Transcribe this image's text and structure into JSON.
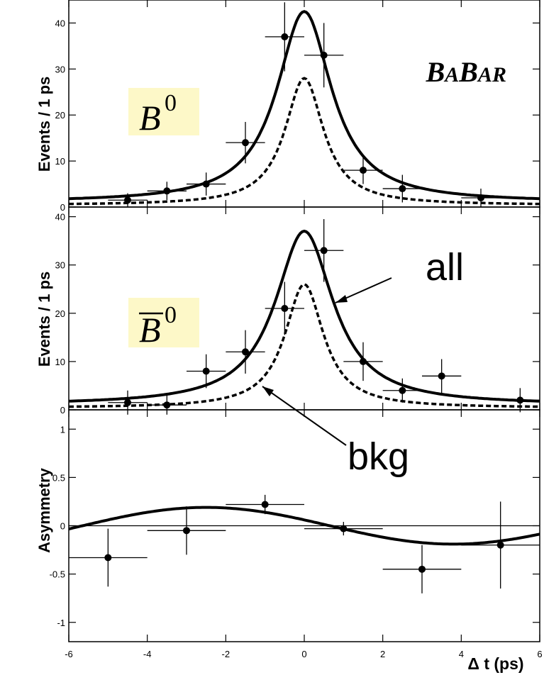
{
  "chart_data": [
    {
      "type": "line",
      "panel": "top",
      "inset_label": "B",
      "inset_superscript": "0",
      "brand": "BABAR",
      "ylabel": "Events / 1 ps",
      "xlim": [
        -6,
        6
      ],
      "ylim": [
        0,
        45
      ],
      "yticks": [
        "0",
        "10",
        "20",
        "30",
        "40"
      ],
      "points": [
        {
          "x": -4.5,
          "y": 1.5,
          "xerr": 0.5,
          "yerr": 1.5
        },
        {
          "x": -3.5,
          "y": 3.5,
          "xerr": 0.5,
          "yerr": 2.0
        },
        {
          "x": -2.5,
          "y": 5,
          "xerr": 0.5,
          "yerr": 2.5
        },
        {
          "x": -1.5,
          "y": 14,
          "xerr": 0.5,
          "yerr": 4.5
        },
        {
          "x": -0.5,
          "y": 37,
          "xerr": 0.5,
          "yerr": 7.5
        },
        {
          "x": 0.5,
          "y": 33,
          "xerr": 0.5,
          "yerr": 7.0
        },
        {
          "x": 1.5,
          "y": 8,
          "xerr": 0.5,
          "yerr": 3.0
        },
        {
          "x": 2.5,
          "y": 4,
          "xerr": 0.5,
          "yerr": 3.0
        },
        {
          "x": 4.5,
          "y": 2,
          "xerr": 0.5,
          "yerr": 2.0
        }
      ],
      "curves": [
        {
          "style": "solid",
          "peak": 42.5,
          "width": 0.85,
          "base": 1.0
        },
        {
          "style": "dashed",
          "peak": 28,
          "width": 0.6,
          "base": 0.4
        }
      ]
    },
    {
      "type": "line",
      "panel": "middle",
      "inset_label": "B",
      "inset_superscript": "0",
      "inset_bar": true,
      "ylabel": "Events / 1 ps",
      "xlim": [
        -6,
        6
      ],
      "ylim": [
        0,
        42
      ],
      "yticks": [
        "0",
        "10",
        "20",
        "30",
        "40"
      ],
      "annotations": [
        "all",
        "bkg"
      ],
      "points": [
        {
          "x": -4.5,
          "y": 1.5,
          "xerr": 0.5,
          "yerr": 2.5
        },
        {
          "x": -3.5,
          "y": 1,
          "xerr": 0.5,
          "yerr": 2.0
        },
        {
          "x": -2.5,
          "y": 8,
          "xerr": 0.5,
          "yerr": 3.5
        },
        {
          "x": -1.5,
          "y": 12,
          "xerr": 0.5,
          "yerr": 4.5
        },
        {
          "x": -0.5,
          "y": 21,
          "xerr": 0.5,
          "yerr": 5.5
        },
        {
          "x": 0.5,
          "y": 33,
          "xerr": 0.5,
          "yerr": 6.5
        },
        {
          "x": 1.5,
          "y": 10,
          "xerr": 0.5,
          "yerr": 4.0
        },
        {
          "x": 2.5,
          "y": 4,
          "xerr": 0.5,
          "yerr": 2.5
        },
        {
          "x": 3.5,
          "y": 7,
          "xerr": 0.5,
          "yerr": 3.5
        },
        {
          "x": 5.5,
          "y": 2,
          "xerr": 0.5,
          "yerr": 2.5
        }
      ],
      "curves": [
        {
          "style": "solid",
          "peak": 37,
          "width": 0.9,
          "base": 1.0
        },
        {
          "style": "dashed",
          "peak": 26,
          "width": 0.6,
          "base": 0.4
        }
      ]
    },
    {
      "type": "line",
      "panel": "bottom",
      "ylabel": "Asymmetry",
      "xlabel": "Δ t (ps)",
      "xlim": [
        -6,
        6
      ],
      "ylim": [
        -1.2,
        1.2
      ],
      "yticks": [
        "-1",
        "-0.5",
        "0",
        "0.5",
        "1"
      ],
      "xticks": [
        "-6",
        "-4",
        "-2",
        "0",
        "2",
        "4",
        "6"
      ],
      "points": [
        {
          "x": -5,
          "y": -0.33,
          "xerr": 1.0,
          "yerr": 0.3
        },
        {
          "x": -3,
          "y": -0.05,
          "xerr": 1.0,
          "yerr": 0.25
        },
        {
          "x": -1,
          "y": 0.22,
          "xerr": 1.0,
          "yerr": 0.1
        },
        {
          "x": 1,
          "y": -0.03,
          "xerr": 1.0,
          "yerr": 0.07
        },
        {
          "x": 3,
          "y": -0.45,
          "xerr": 1.0,
          "yerr": 0.25
        },
        {
          "x": 5,
          "y": -0.2,
          "xerr": 1.0,
          "yerr": 0.45
        }
      ],
      "curve": {
        "amplitude": 0.19,
        "period_ps": 12.6,
        "phase_ps": -2.5
      }
    }
  ]
}
